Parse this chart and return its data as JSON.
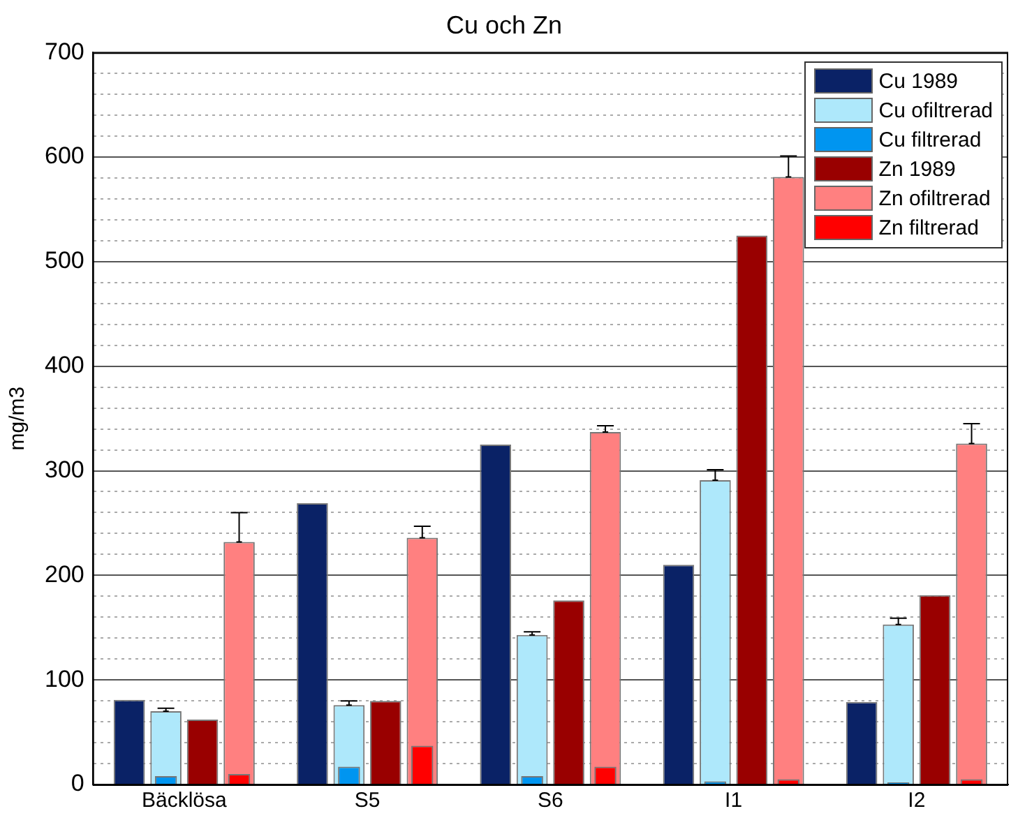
{
  "chart_data": {
    "type": "bar",
    "title": "Cu och Zn",
    "ylabel": "mg/m3",
    "categories": [
      "Bäcklösa",
      "S5",
      "S6",
      "I1",
      "I2"
    ],
    "series": [
      {
        "name": "Cu 1989",
        "color": "#0a2266",
        "values": [
          81,
          269,
          325,
          210,
          79
        ]
      },
      {
        "name": "Cu ofiltrerad",
        "color": "#aee8fb",
        "values": [
          70,
          76,
          143,
          291,
          153
        ],
        "errors": [
          [
            70,
            73
          ],
          [
            76,
            80
          ],
          [
            143,
            146
          ],
          [
            291,
            301
          ],
          [
            153,
            159
          ]
        ]
      },
      {
        "name": "Cu filtrerad",
        "color": "#0095f0",
        "values": [
          8,
          17,
          8,
          3,
          2
        ]
      },
      {
        "name": "Zn 1989",
        "color": "#990000",
        "values": [
          62,
          80,
          176,
          525,
          181
        ]
      },
      {
        "name": "Zn ofiltrerad",
        "color": "#ff8080",
        "values": [
          232,
          236,
          337,
          581,
          326
        ],
        "errors": [
          [
            232,
            260
          ],
          [
            236,
            247
          ],
          [
            337,
            343
          ],
          [
            581,
            601
          ],
          [
            326,
            345
          ]
        ]
      },
      {
        "name": "Zn filtrerad",
        "color": "#ff0000",
        "values": [
          10,
          37,
          17,
          5,
          5
        ]
      }
    ],
    "ylim": [
      0,
      700
    ],
    "yticks": [
      0,
      {
        "value": 20,
        "label": null
      },
      {
        "value": 40,
        "label": null
      },
      {
        "value": 60,
        "label": null
      },
      {
        "value": 80,
        "label": null
      },
      100,
      {
        "value": 120,
        "label": null
      },
      {
        "value": 140,
        "label": null
      },
      {
        "value": 160,
        "label": null
      },
      {
        "value": 180,
        "label": null
      },
      200,
      {
        "value": 220,
        "label": null
      },
      {
        "value": 240,
        "label": null
      },
      {
        "value": 260,
        "label": null
      },
      {
        "value": 280,
        "label": null
      },
      300,
      {
        "value": 320,
        "label": null
      },
      {
        "value": 340,
        "label": null
      },
      {
        "value": 360,
        "label": null
      },
      {
        "value": 380,
        "label": null
      },
      400,
      {
        "value": 420,
        "label": null
      },
      {
        "value": 440,
        "label": null
      },
      {
        "value": 460,
        "label": null
      },
      {
        "value": 480,
        "label": null
      },
      500,
      {
        "value": 520,
        "label": null
      },
      {
        "value": 540,
        "label": null
      },
      {
        "value": 560,
        "label": null
      },
      {
        "value": 580,
        "label": null
      },
      600,
      {
        "value": 620,
        "label": null
      },
      {
        "value": 640,
        "label": null
      },
      {
        "value": 660,
        "label": null
      },
      {
        "value": 680,
        "label": null
      },
      700
    ],
    "grid": "y",
    "legend": "top right"
  }
}
